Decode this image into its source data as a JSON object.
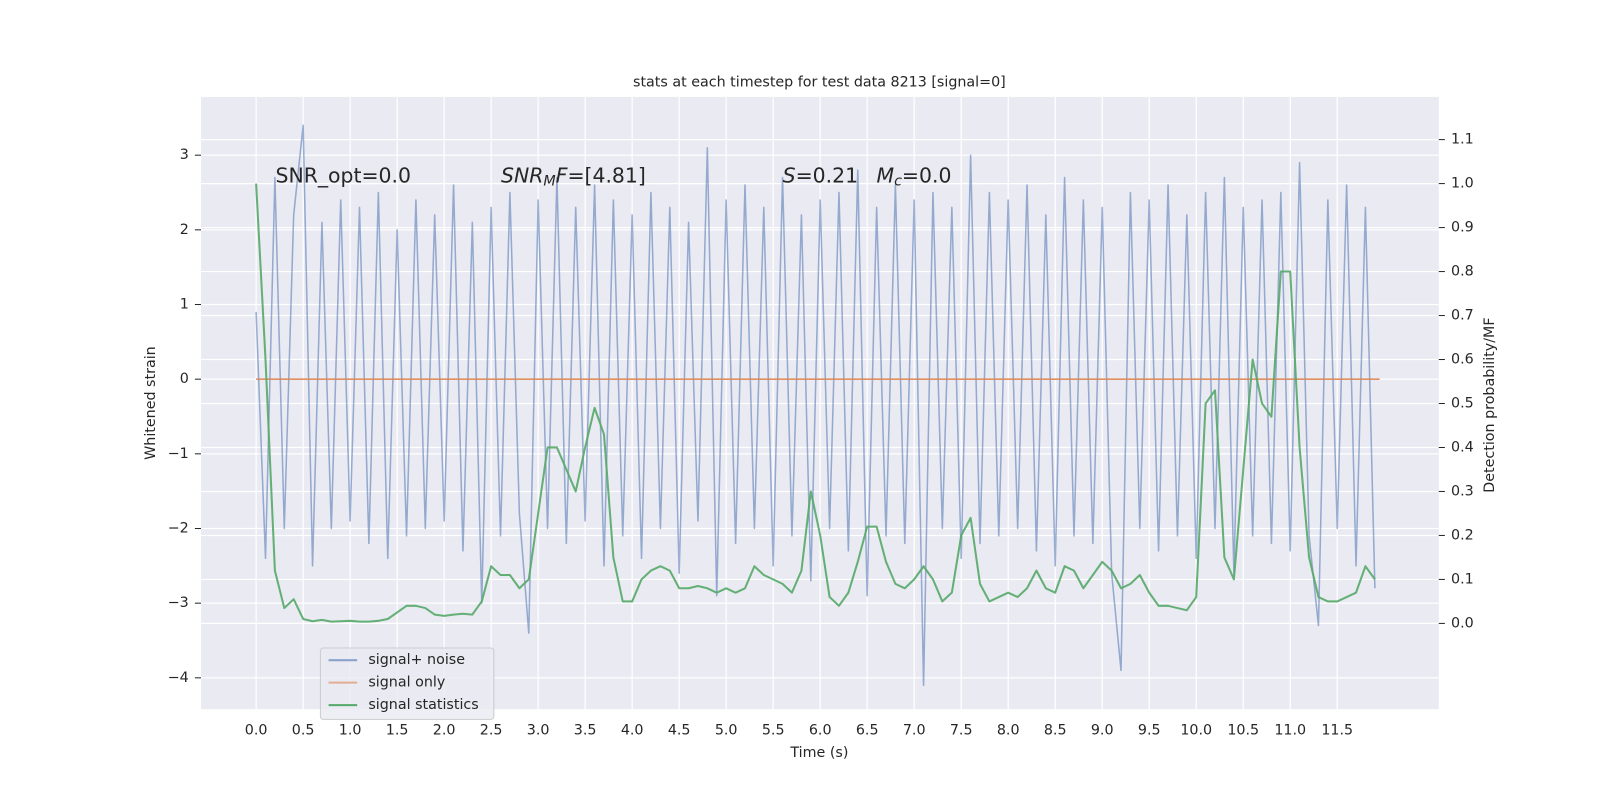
{
  "chart_data": {
    "type": "line",
    "title": "stats at each timestep for test data 8213 [signal=0]",
    "xlabel": "Time (s)",
    "ylabel": "Whitened strain",
    "y2label": "Detection probability/MF",
    "annotations": [
      [
        "SNR_opt=0.0"
      ],
      [
        "SNR",
        "M",
        "F",
        "=[4.81]"
      ],
      [
        "S",
        "=0.21",
        "M",
        "c",
        "=0.0"
      ]
    ],
    "grid": true,
    "legend": "lower left",
    "xlim": [
      -0.586,
      12.58
    ],
    "xticks": [
      {
        "value": 0,
        "label": "0.0"
      },
      0.5,
      {
        "value": 1,
        "label": "1.0"
      },
      1.5,
      {
        "value": 2,
        "label": "2.0"
      },
      2.5,
      {
        "value": 3,
        "label": "3.0"
      },
      3.5,
      {
        "value": 4,
        "label": "4.0"
      },
      4.5,
      {
        "value": 5,
        "label": "5.0"
      },
      5.5,
      {
        "value": 6,
        "label": "6.0"
      },
      6.5,
      {
        "value": 7,
        "label": "7.0"
      },
      7.5,
      {
        "value": 8,
        "label": "8.0"
      },
      8.5,
      {
        "value": 9,
        "label": "9.0"
      },
      9.5,
      {
        "value": 10,
        "label": "10.0"
      },
      10.5,
      {
        "value": 11,
        "label": "11.0"
      },
      11.5
    ],
    "ylim": [
      -4.42,
      3.78
    ],
    "yticks": [
      {
        "value": -4,
        "label": "−4"
      },
      {
        "value": -3,
        "label": "−3"
      },
      {
        "value": -2,
        "label": "−2"
      },
      {
        "value": -1,
        "label": "−1"
      },
      0,
      1,
      2,
      3
    ],
    "y2lim": [
      -0.195,
      1.197
    ],
    "y2ticks": [
      {
        "value": 0,
        "label": "0.0"
      },
      0.1,
      0.2,
      0.3,
      0.4,
      0.5,
      0.6,
      0.7,
      0.8,
      0.9,
      {
        "value": 1,
        "label": "1.0"
      },
      1.1
    ],
    "x": [
      0,
      0.1,
      0.2,
      0.3,
      0.4,
      0.5,
      0.6,
      0.7,
      0.8,
      0.9,
      1,
      1.1,
      1.2,
      1.3,
      1.4,
      1.5,
      1.6,
      1.7,
      1.8,
      1.9,
      2,
      2.1,
      2.2,
      2.3,
      2.4,
      2.5,
      2.6,
      2.7,
      2.8,
      2.9,
      3,
      3.1,
      3.2,
      3.3,
      3.4,
      3.5,
      3.6,
      3.7,
      3.8,
      3.9,
      4,
      4.1,
      4.2,
      4.3,
      4.4,
      4.5,
      4.6,
      4.7,
      4.8,
      4.9,
      5,
      5.1,
      5.2,
      5.3,
      5.4,
      5.5,
      5.6,
      5.7,
      5.8,
      5.9,
      6,
      6.1,
      6.2,
      6.3,
      6.4,
      6.5,
      6.6,
      6.7,
      6.8,
      6.9,
      7,
      7.1,
      7.2,
      7.3,
      7.4,
      7.5,
      7.6,
      7.7,
      7.8,
      7.9,
      8,
      8.1,
      8.2,
      8.3,
      8.4,
      8.5,
      8.6,
      8.7,
      8.8,
      8.9,
      9,
      9.1,
      9.2,
      9.3,
      9.4,
      9.5,
      9.6,
      9.7,
      9.8,
      9.9,
      10,
      10.1,
      10.2,
      10.3,
      10.4,
      10.5,
      10.6,
      10.7,
      10.8,
      10.9,
      11,
      11.1,
      11.2,
      11.3,
      11.4,
      11.5,
      11.6,
      11.7,
      11.8,
      11.9
    ],
    "series": [
      {
        "name": "signal+ noise",
        "color": "#4c72b0",
        "values": [
          0.9,
          -2.4,
          2.7,
          -2.0,
          2.2,
          3.4,
          -2.5,
          2.1,
          -2.0,
          2.4,
          -1.9,
          2.3,
          -2.2,
          2.5,
          -2.4,
          2.0,
          -2.1,
          2.4,
          -2.0,
          2.2,
          -1.9,
          2.6,
          -2.3,
          2.1,
          -3.0,
          2.3,
          -2.1,
          2.5,
          -1.8,
          -3.4,
          2.4,
          -2.0,
          2.7,
          -2.2,
          2.3,
          -1.9,
          2.6,
          -2.5,
          2.4,
          -2.1,
          2.2,
          -2.4,
          2.5,
          -2.0,
          2.3,
          -2.6,
          2.1,
          -1.9,
          3.1,
          -2.9,
          2.4,
          -2.2,
          2.6,
          -2.0,
          2.3,
          -2.5,
          2.7,
          -2.1,
          2.2,
          -2.7,
          2.4,
          -2.0,
          2.5,
          -2.3,
          2.8,
          -2.9,
          2.3,
          -2.1,
          2.6,
          -2.2,
          2.4,
          -4.1,
          2.5,
          -2.0,
          2.3,
          -2.4,
          3.0,
          -2.2,
          2.5,
          -2.1,
          2.4,
          -2.0,
          2.6,
          -2.3,
          2.2,
          -2.5,
          2.7,
          -2.1,
          2.4,
          -2.2,
          2.3,
          -2.6,
          -3.9,
          2.5,
          -2.0,
          2.4,
          -2.3,
          2.6,
          -2.1,
          2.2,
          -2.4,
          2.5,
          -2.0,
          2.7,
          -2.6,
          2.3,
          -2.1,
          2.4,
          -2.2,
          2.5,
          -2.3,
          2.9,
          -2.1,
          -3.3,
          2.4,
          -2.0,
          2.6,
          -2.5,
          2.3,
          -2.8
        ]
      },
      {
        "name": "signal only",
        "color": "#dd8452",
        "x": [
          0,
          11.95
        ],
        "values": [
          0,
          0
        ]
      },
      {
        "name": "signal statistics",
        "color": "#55a868",
        "axis": "y2",
        "values": [
          1.0,
          0.6,
          0.12,
          0.035,
          0.055,
          0.01,
          0.005,
          0.008,
          0.004,
          0.005,
          0.006,
          0.004,
          0.004,
          0.006,
          0.01,
          0.025,
          0.04,
          0.04,
          0.035,
          0.02,
          0.017,
          0.02,
          0.022,
          0.02,
          0.05,
          0.13,
          0.11,
          0.11,
          0.08,
          0.1,
          0.25,
          0.4,
          0.4,
          0.35,
          0.3,
          0.4,
          0.49,
          0.43,
          0.15,
          0.05,
          0.05,
          0.1,
          0.12,
          0.13,
          0.12,
          0.08,
          0.08,
          0.085,
          0.08,
          0.07,
          0.08,
          0.07,
          0.08,
          0.13,
          0.11,
          0.1,
          0.09,
          0.07,
          0.12,
          0.3,
          0.2,
          0.06,
          0.04,
          0.07,
          0.14,
          0.22,
          0.22,
          0.14,
          0.09,
          0.08,
          0.1,
          0.13,
          0.1,
          0.05,
          0.07,
          0.2,
          0.24,
          0.09,
          0.05,
          0.06,
          0.07,
          0.06,
          0.08,
          0.12,
          0.08,
          0.07,
          0.13,
          0.12,
          0.08,
          0.11,
          0.14,
          0.12,
          0.08,
          0.09,
          0.11,
          0.07,
          0.04,
          0.04,
          0.035,
          0.03,
          0.06,
          0.5,
          0.53,
          0.15,
          0.1,
          0.35,
          0.6,
          0.5,
          0.47,
          0.8,
          0.8,
          0.4,
          0.15,
          0.06,
          0.05,
          0.05,
          0.06,
          0.07,
          0.13,
          0.1
        ]
      }
    ]
  }
}
